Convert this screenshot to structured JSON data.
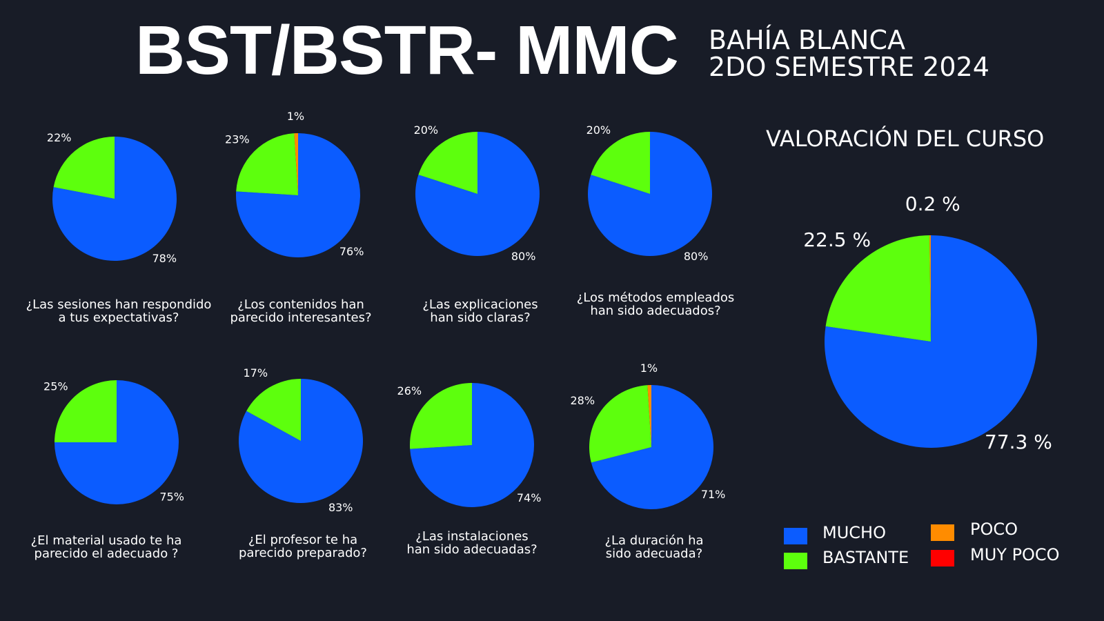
{
  "header": {
    "title": "BST/BSTR- MMC",
    "subtitle_line1": "BAHÍA BLANCA",
    "subtitle_line2": "2DO SEMESTRE 2024"
  },
  "colors": {
    "mucho": "#0b5cff",
    "bastante": "#5dff0d",
    "poco": "#ff8c00",
    "muy_poco": "#ff0000",
    "background": "#181c27"
  },
  "legend": [
    {
      "label": "MUCHO",
      "color": "#0b5cff"
    },
    {
      "label": "BASTANTE",
      "color": "#5dff0d"
    },
    {
      "label": "POCO",
      "color": "#ff8c00"
    },
    {
      "label": "MUY POCO",
      "color": "#ff0000"
    }
  ],
  "chart_data": [
    {
      "type": "pie",
      "question_lines": [
        "¿Las sesiones han respondido",
        "a tus expectativas?"
      ],
      "slices": [
        {
          "category": "MUCHO",
          "value": 78,
          "label": "78%"
        },
        {
          "category": "BASTANTE",
          "value": 22,
          "label": "22%"
        }
      ]
    },
    {
      "type": "pie",
      "question_lines": [
        "¿Los contenidos han",
        "parecido interesantes?"
      ],
      "slices": [
        {
          "category": "MUCHO",
          "value": 76,
          "label": "76%"
        },
        {
          "category": "BASTANTE",
          "value": 23,
          "label": "23%"
        },
        {
          "category": "POCO",
          "value": 1,
          "label": "1%"
        }
      ]
    },
    {
      "type": "pie",
      "question_lines": [
        "¿Las explicaciones",
        "han sido claras?"
      ],
      "slices": [
        {
          "category": "MUCHO",
          "value": 80,
          "label": "80%"
        },
        {
          "category": "BASTANTE",
          "value": 20,
          "label": "20%"
        }
      ]
    },
    {
      "type": "pie",
      "question_lines": [
        "¿Los métodos empleados",
        "han sido adecuados?"
      ],
      "slices": [
        {
          "category": "MUCHO",
          "value": 80,
          "label": "80%"
        },
        {
          "category": "BASTANTE",
          "value": 20,
          "label": "20%"
        }
      ]
    },
    {
      "type": "pie",
      "question_lines": [
        "¿El material usado te ha",
        "parecido el adecuado ?"
      ],
      "slices": [
        {
          "category": "MUCHO",
          "value": 75,
          "label": "75%"
        },
        {
          "category": "BASTANTE",
          "value": 25,
          "label": "25%"
        }
      ]
    },
    {
      "type": "pie",
      "question_lines": [
        "¿El profesor te ha",
        "parecido preparado?"
      ],
      "slices": [
        {
          "category": "MUCHO",
          "value": 83,
          "label": "83%"
        },
        {
          "category": "BASTANTE",
          "value": 17,
          "label": "17%"
        }
      ]
    },
    {
      "type": "pie",
      "question_lines": [
        "¿Las instalaciones",
        "han sido adecuadas?"
      ],
      "slices": [
        {
          "category": "MUCHO",
          "value": 74,
          "label": "74%"
        },
        {
          "category": "BASTANTE",
          "value": 26,
          "label": "26%"
        }
      ]
    },
    {
      "type": "pie",
      "question_lines": [
        "¿La duración ha",
        "sido adecuada?"
      ],
      "slices": [
        {
          "category": "MUCHO",
          "value": 71,
          "label": "71%"
        },
        {
          "category": "BASTANTE",
          "value": 28,
          "label": "28%"
        },
        {
          "category": "POCO",
          "value": 1,
          "label": "1%"
        }
      ]
    },
    {
      "type": "pie",
      "title": "VALORACIÓN DEL CURSO",
      "slices": [
        {
          "category": "MUCHO",
          "value": 77.3,
          "label": "77.3 %"
        },
        {
          "category": "BASTANTE",
          "value": 22.5,
          "label": "22.5 %"
        },
        {
          "category": "POCO",
          "value": 0.2,
          "label": "0.2 %"
        }
      ]
    }
  ]
}
